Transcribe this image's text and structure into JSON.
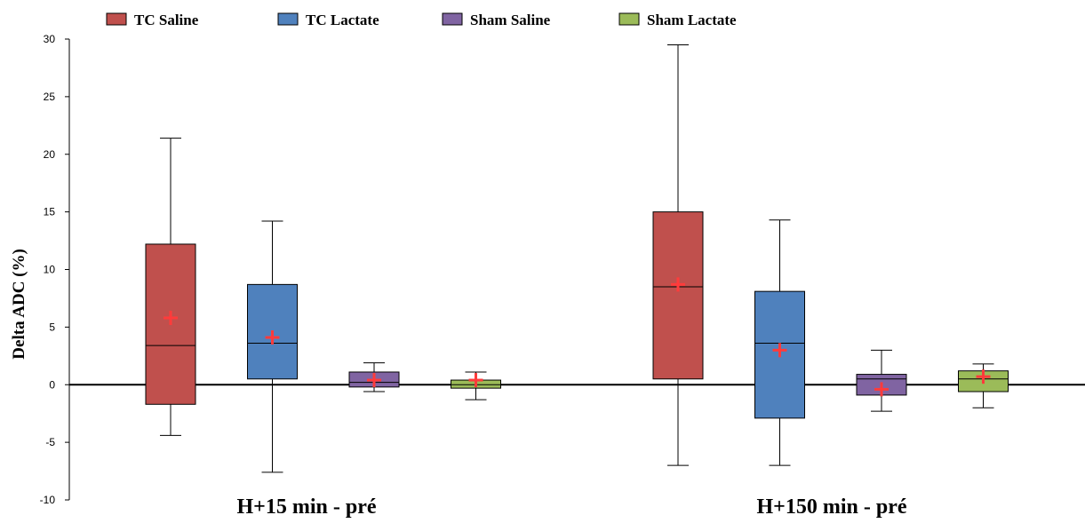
{
  "chart_data": {
    "type": "box",
    "ylabel": "Delta ADC (%)",
    "ylim": [
      -10,
      30
    ],
    "yticks": [
      -10,
      -5,
      0,
      5,
      10,
      15,
      20,
      25,
      30
    ],
    "grid": false,
    "legend_position": "top",
    "series": [
      {
        "name": "TC Saline",
        "color": "#c0504d",
        "stroke": "#000000"
      },
      {
        "name": "TC Lactate",
        "color": "#4f81bd",
        "stroke": "#000000"
      },
      {
        "name": "Sham Saline",
        "color": "#8064a2",
        "stroke": "#000000"
      },
      {
        "name": "Sham Lactate",
        "color": "#9bbb59",
        "stroke": "#000000"
      }
    ],
    "categories": [
      "H+15 min - pré",
      "H+150 min - pré"
    ],
    "mean_marker_color": "#ff3b3b",
    "boxes": [
      [
        {
          "min": -4.4,
          "q1": -1.7,
          "median": 3.4,
          "q3": 12.2,
          "max": 21.4,
          "mean": 5.8
        },
        {
          "min": -7.6,
          "q1": 0.5,
          "median": 3.6,
          "q3": 8.7,
          "max": 14.2,
          "mean": 4.1
        },
        {
          "min": -0.6,
          "q1": -0.2,
          "median": 0.2,
          "q3": 1.1,
          "max": 1.9,
          "mean": 0.4
        },
        {
          "min": -1.3,
          "q1": -0.3,
          "median": 0.0,
          "q3": 0.4,
          "max": 1.1,
          "mean": 0.4
        }
      ],
      [
        {
          "min": -7.0,
          "q1": 0.5,
          "median": 8.5,
          "q3": 15.0,
          "max": 29.5,
          "mean": 8.7
        },
        {
          "min": -7.0,
          "q1": -2.9,
          "median": 3.6,
          "q3": 8.1,
          "max": 14.3,
          "mean": 3.0
        },
        {
          "min": -2.3,
          "q1": -0.9,
          "median": 0.5,
          "q3": 0.9,
          "max": 3.0,
          "mean": -0.4
        },
        {
          "min": -2.0,
          "q1": -0.6,
          "median": 0.5,
          "q3": 1.2,
          "max": 1.8,
          "mean": 0.7
        }
      ]
    ]
  }
}
